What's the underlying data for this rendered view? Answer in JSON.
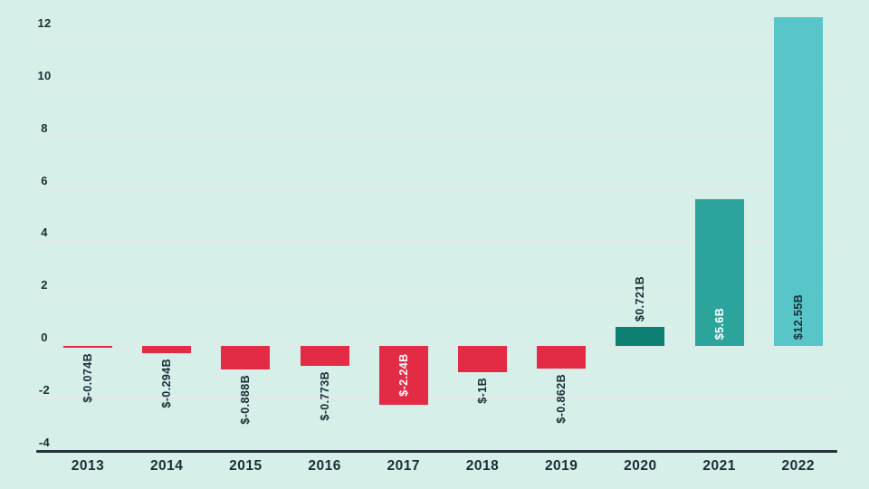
{
  "colors": {
    "background": "#d6efe9",
    "gridline": "#dfeae6",
    "axis_line": "#24333b",
    "text_dark": "#1b2d36",
    "label_light": "#ffffff",
    "negative_bar": "#e42b45",
    "positive_bar_2020": "#0e8073",
    "positive_bar_2021": "#2ba49b",
    "positive_bar_2022": "#58c6c8"
  },
  "chart_data": {
    "type": "bar",
    "title": "",
    "xlabel": "",
    "ylabel": "",
    "categories": [
      "2013",
      "2014",
      "2015",
      "2016",
      "2017",
      "2018",
      "2019",
      "2020",
      "2021",
      "2022"
    ],
    "values": [
      -0.074,
      -0.294,
      -0.888,
      -0.773,
      -2.24,
      -1,
      -0.862,
      0.721,
      5.6,
      12.55
    ],
    "bar_labels": [
      "$-0.074B",
      "$-0.294B",
      "$-0.888B",
      "$-0.773B",
      "$-2.24B",
      "$-1B",
      "$-0.862B",
      "$0.721B",
      "$5.6B",
      "$12.55B"
    ],
    "bar_colors": [
      "#e42b45",
      "#e42b45",
      "#e42b45",
      "#e42b45",
      "#e42b45",
      "#e42b45",
      "#e42b45",
      "#0e8073",
      "#2ba49b",
      "#58c6c8"
    ],
    "bar_label_colors": [
      "#1b2d36",
      "#1b2d36",
      "#1b2d36",
      "#1b2d36",
      "#ffffff",
      "#1b2d36",
      "#1b2d36",
      "#1b2d36",
      "#ffffff",
      "#1b2d36"
    ],
    "bar_label_placement": [
      "below",
      "below",
      "below",
      "below",
      "inside",
      "below",
      "below",
      "above",
      "inside",
      "inside"
    ],
    "yticks": [
      -4,
      -2,
      0,
      2,
      4,
      6,
      8,
      10,
      12
    ],
    "ylim": [
      -4,
      13
    ],
    "grid": true,
    "legend": "none"
  }
}
